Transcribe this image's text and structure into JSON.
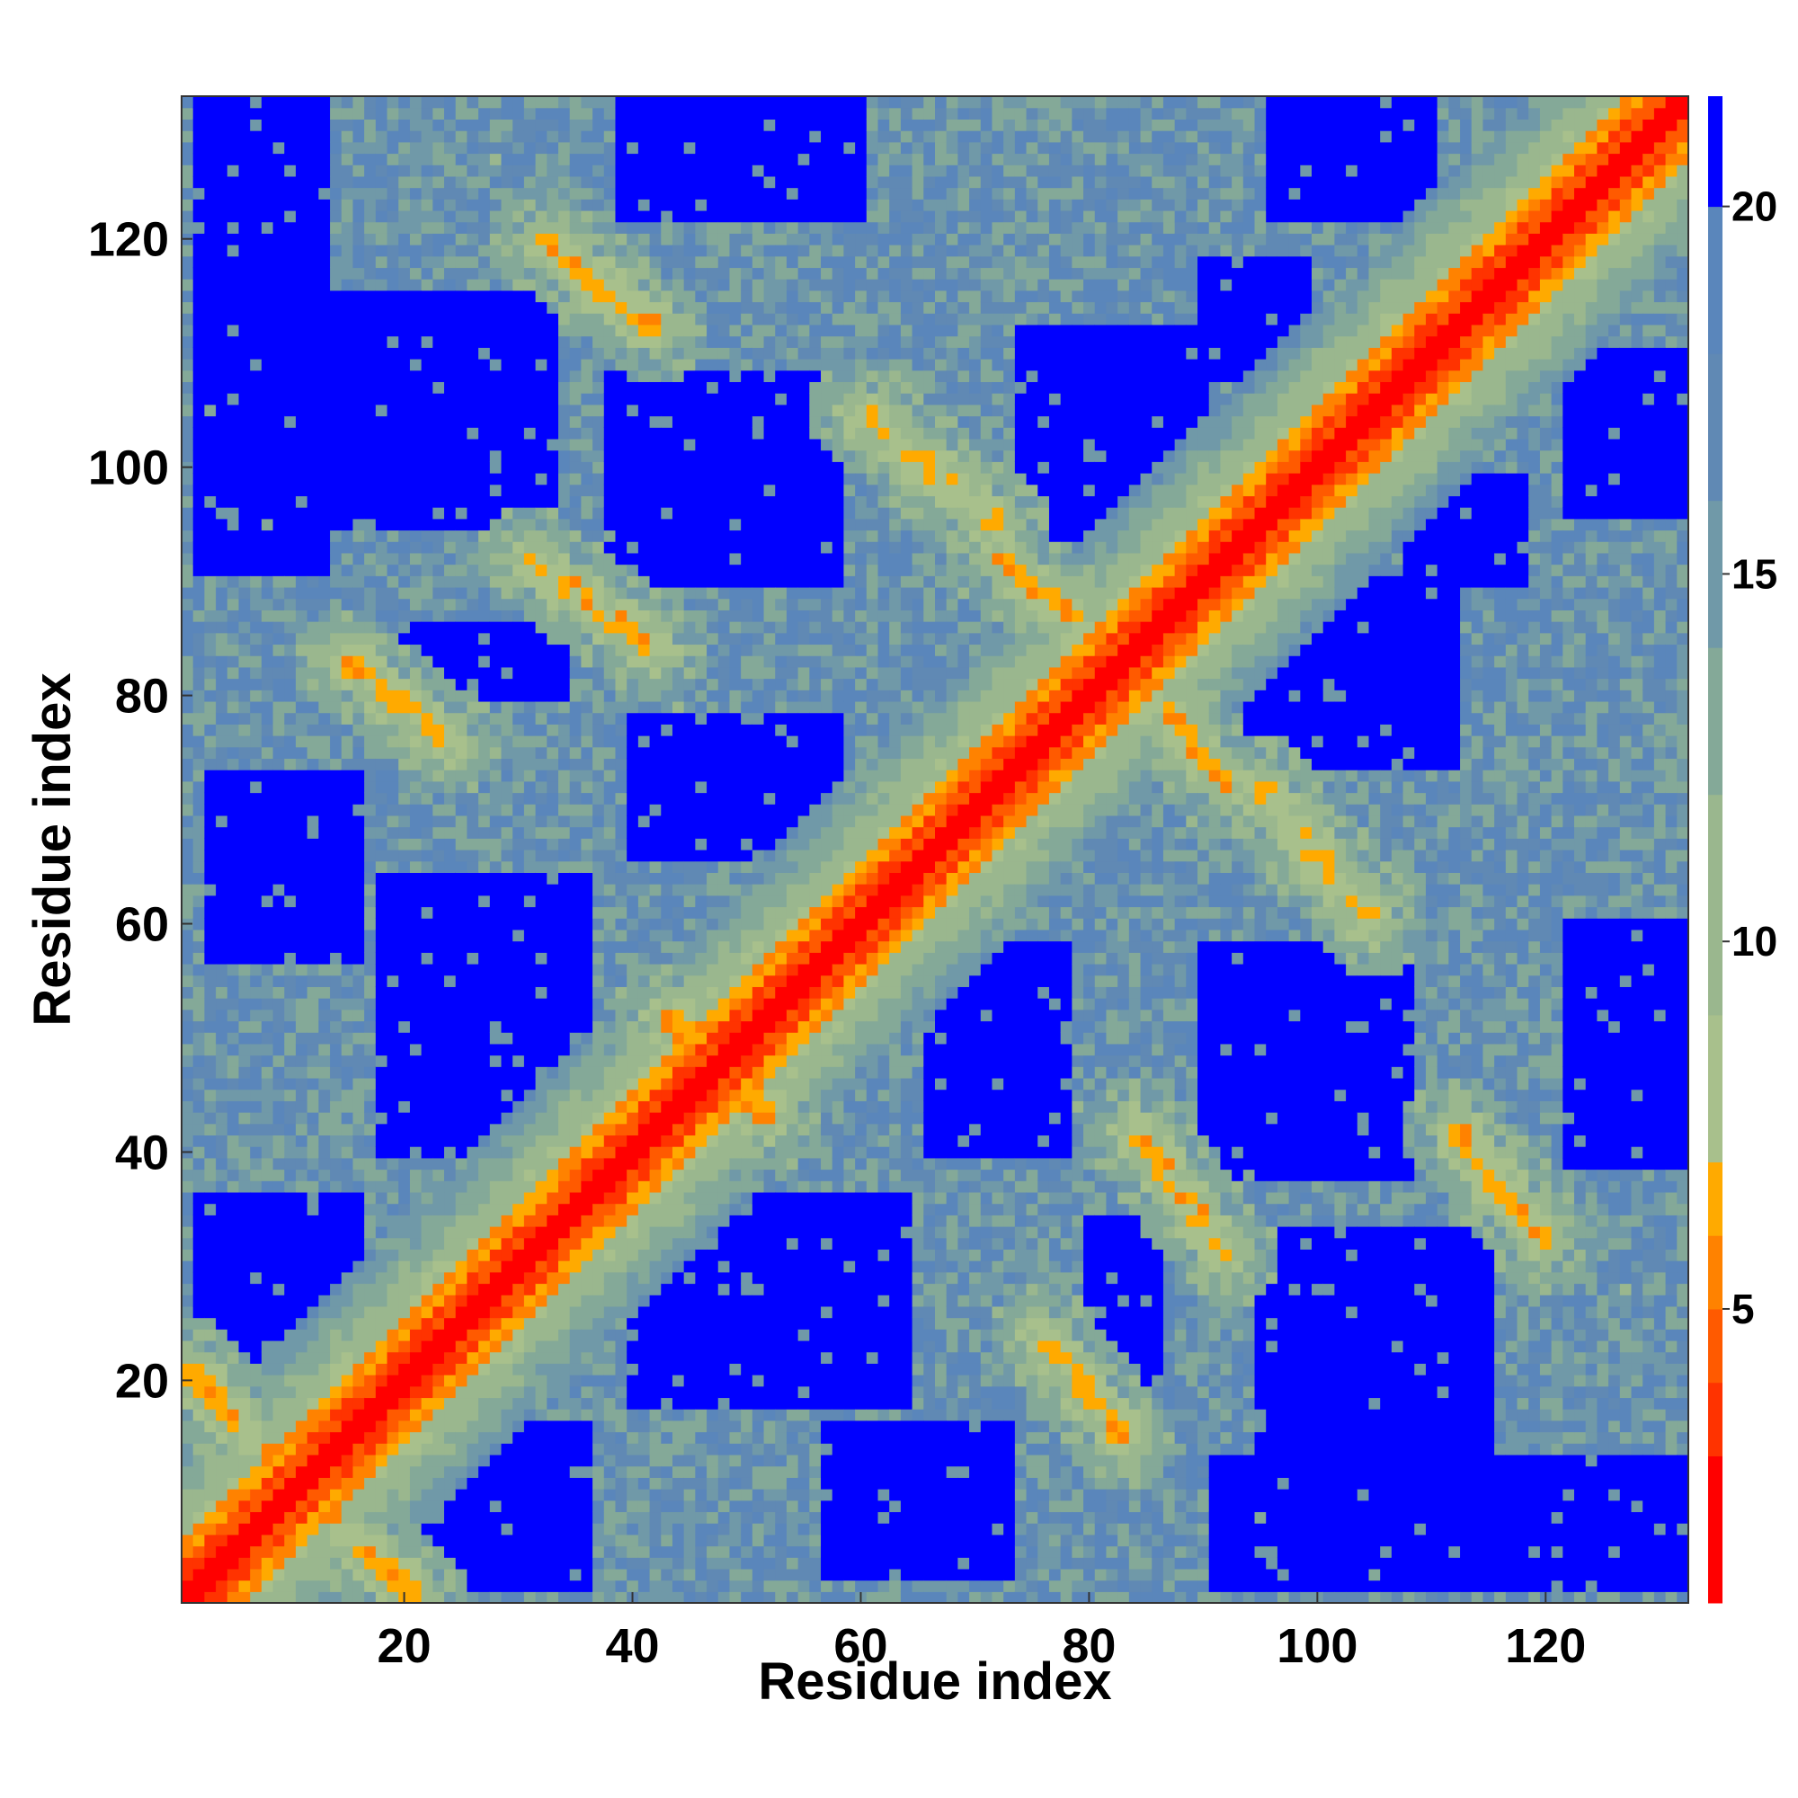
{
  "chart_data": {
    "type": "heatmap",
    "title": "",
    "xlabel": "Residue index",
    "ylabel": "Residue index",
    "n_residues": 132,
    "xlim": [
      1,
      132
    ],
    "ylim": [
      1,
      132
    ],
    "x_ticks": [
      20,
      40,
      60,
      80,
      100,
      120
    ],
    "y_ticks": [
      20,
      40,
      60,
      80,
      100,
      120
    ],
    "colorbar": {
      "ticks": [
        5,
        10,
        15,
        20
      ],
      "range": [
        1,
        21.5
      ],
      "levels": [
        {
          "max": 3,
          "color": "#ff0000"
        },
        {
          "max": 4,
          "color": "#ff3300"
        },
        {
          "max": 5,
          "color": "#ff5a00"
        },
        {
          "max": 6,
          "color": "#ff8200"
        },
        {
          "max": 7,
          "color": "#ffaa00"
        },
        {
          "max": 9,
          "color": "#a8c08c"
        },
        {
          "max": 12,
          "color": "#9ab78e"
        },
        {
          "max": 14,
          "color": "#84a998"
        },
        {
          "max": 16,
          "color": "#7099a8"
        },
        {
          "max": 18,
          "color": "#6089b4"
        },
        {
          "max": 20,
          "color": "#5a86bb"
        },
        {
          "max": 100,
          "color": "#0000ff"
        }
      ]
    },
    "contact_bands": [
      {
        "x": [
          1,
          20
        ],
        "y": [
          21,
          1
        ],
        "value": 6.5
      },
      {
        "x": [
          8,
          23
        ],
        "y": [
          12,
          1
        ],
        "value": 6.5
      },
      {
        "x": [
          15,
          24
        ],
        "y": [
          83,
          76
        ],
        "value": 6.5
      },
      {
        "x": [
          31,
          42
        ],
        "y": [
          92,
          84
        ],
        "value": 6.5
      },
      {
        "x": [
          32,
          42
        ],
        "y": [
          120,
          112
        ],
        "value": 6.5
      },
      {
        "x": [
          72,
          84
        ],
        "y": [
          92,
          83
        ],
        "value": 6.5
      },
      {
        "x": [
          84,
          93
        ],
        "y": [
          83,
          73
        ],
        "value": 6.5
      },
      {
        "x": [
          83,
          94
        ],
        "y": [
          40,
          32
        ],
        "value": 6.5
      },
      {
        "x": [
          112,
          121
        ],
        "y": [
          40,
          32
        ],
        "value": 6.5
      },
      {
        "x": [
          76,
          82
        ],
        "y": [
          20,
          12
        ],
        "value": 6.5
      },
      {
        "x": [
          43,
          50
        ],
        "y": [
          52,
          45
        ],
        "value": 6.0
      },
      {
        "x": [
          48,
          55
        ],
        "y": [
          45,
          40
        ],
        "value": 6.5
      },
      {
        "x": [
          60,
          72
        ],
        "y": [
          105,
          95
        ],
        "value": 7.0
      },
      {
        "x": [
          96,
          106
        ],
        "y": [
          75,
          62
        ],
        "value": 7.0
      }
    ],
    "background_regions": [
      {
        "x": [
          1,
          132
        ],
        "y": [
          1,
          132
        ],
        "value": 16
      },
      {
        "x": [
          18,
          40
        ],
        "y": [
          1,
          15
        ],
        "value": 21.5
      },
      {
        "x": [
          3,
          18
        ],
        "y": [
          9,
          19
        ],
        "value": 21.5
      },
      {
        "x": [
          2,
          16
        ],
        "y": [
          22,
          36
        ],
        "value": 21.5
      },
      {
        "x": [
          35,
          62
        ],
        "y": [
          20,
          36
        ],
        "value": 21.5
      },
      {
        "x": [
          18,
          36
        ],
        "y": [
          40,
          64
        ],
        "value": 21.5
      },
      {
        "x": [
          63,
          78
        ],
        "y": [
          5,
          19
        ],
        "value": 21.5
      },
      {
        "x": [
          3,
          16
        ],
        "y": [
          57,
          73
        ],
        "value": 21.5
      },
      {
        "x": [
          40,
          58
        ],
        "y": [
          66,
          78
        ],
        "value": 21.5
      },
      {
        "x": [
          20,
          34
        ],
        "y": [
          80,
          86
        ],
        "value": 21.5
      },
      {
        "x": [
          2,
          13
        ],
        "y": [
          91,
          132
        ],
        "value": 21.5
      },
      {
        "x": [
          13,
          33
        ],
        "y": [
          95,
          115
        ],
        "value": 21.5
      },
      {
        "x": [
          38,
          58
        ],
        "y": [
          90,
          108
        ],
        "value": 21.5
      },
      {
        "x": [
          39,
          60
        ],
        "y": [
          122,
          132
        ],
        "value": 21.5
      },
      {
        "x": [
          74,
          90
        ],
        "y": [
          93,
          112
        ],
        "value": 21.5
      },
      {
        "x": [
          96,
          110
        ],
        "y": [
          122,
          132
        ],
        "value": 21.5
      },
      {
        "x": [
          90,
          99
        ],
        "y": [
          108,
          118
        ],
        "value": 21.5
      },
      {
        "x": [
          70,
          78
        ],
        "y": [
          38,
          60
        ],
        "value": 21.5
      },
      {
        "x": [
          90,
          107
        ],
        "y": [
          42,
          64
        ],
        "value": 21.5
      },
      {
        "x": [
          81,
          87
        ],
        "y": [
          22,
          34
        ],
        "value": 21.5
      },
      {
        "x": [
          99,
          115
        ],
        "y": [
          20,
          34
        ],
        "value": 21.5
      },
      {
        "x": [
          90,
          104
        ],
        "y": [
          3,
          16
        ],
        "value": 21.5
      },
      {
        "x": [
          114,
          132
        ],
        "y": [
          3,
          18
        ],
        "value": 21.5
      },
      {
        "x": [
          116,
          132
        ],
        "y": [
          44,
          64
        ],
        "value": 21.5
      },
      {
        "x": [
          112,
          128
        ],
        "y": [
          94,
          112
        ],
        "value": 21.5
      },
      {
        "x": [
          106,
          113
        ],
        "y": [
          90,
          97
        ],
        "value": 21.5
      },
      {
        "x": [
          122,
          132
        ],
        "y": [
          76,
          90
        ],
        "value": 21.5
      },
      {
        "x": [
          83,
          91
        ],
        "y": [
          63,
          74
        ],
        "value": 21.5
      },
      {
        "x": [
          90,
          96
        ],
        "y": [
          82,
          87
        ],
        "value": 21.5
      }
    ]
  }
}
